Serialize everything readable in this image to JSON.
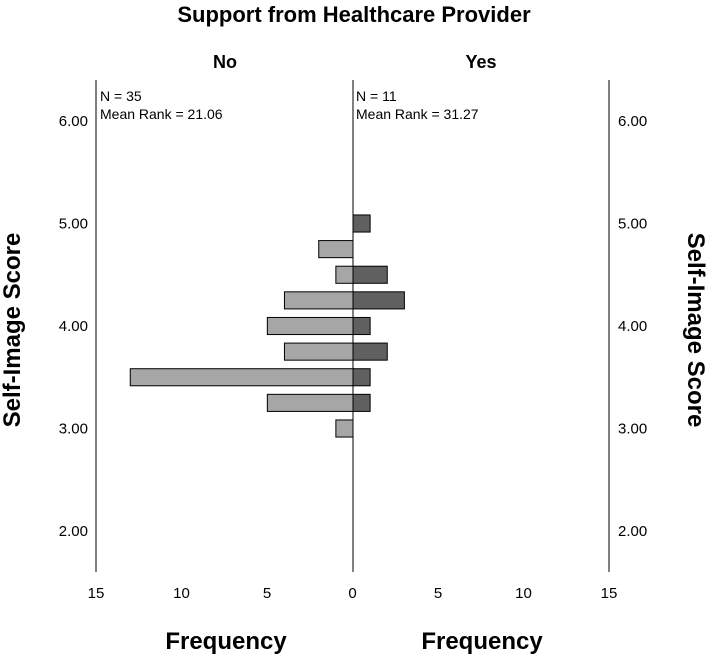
{
  "chart_data": {
    "type": "bar",
    "orientation": "back-to-back horizontal histogram",
    "title": "Support from Healthcare Provider",
    "ylabel": "Self-Image Score",
    "xlabel": "Frequency",
    "ylim": [
      1.6,
      6.4
    ],
    "xlim": [
      0,
      15
    ],
    "yticks": [
      "2.00",
      "3.00",
      "4.00",
      "5.00",
      "6.00"
    ],
    "xticks": [
      "15",
      "10",
      "5",
      "0",
      "5",
      "10",
      "15"
    ],
    "bin_width": 0.1667,
    "panels": [
      {
        "name": "No",
        "color": "#a6a6a6",
        "annotations": [
          "N = 35",
          "Mean Rank = 21.06"
        ],
        "bins": [
          {
            "y": 3.0,
            "count": 1
          },
          {
            "y": 3.25,
            "count": 5
          },
          {
            "y": 3.5,
            "count": 13
          },
          {
            "y": 3.75,
            "count": 4
          },
          {
            "y": 4.0,
            "count": 5
          },
          {
            "y": 4.25,
            "count": 4
          },
          {
            "y": 4.5,
            "count": 1
          },
          {
            "y": 4.75,
            "count": 2
          }
        ]
      },
      {
        "name": "Yes",
        "color": "#606060",
        "annotations": [
          "N = 11",
          "Mean Rank = 31.27"
        ],
        "bins": [
          {
            "y": 3.25,
            "count": 1
          },
          {
            "y": 3.5,
            "count": 1
          },
          {
            "y": 3.75,
            "count": 2
          },
          {
            "y": 4.0,
            "count": 1
          },
          {
            "y": 4.25,
            "count": 3
          },
          {
            "y": 4.5,
            "count": 2
          },
          {
            "y": 5.0,
            "count": 1
          }
        ]
      }
    ]
  }
}
